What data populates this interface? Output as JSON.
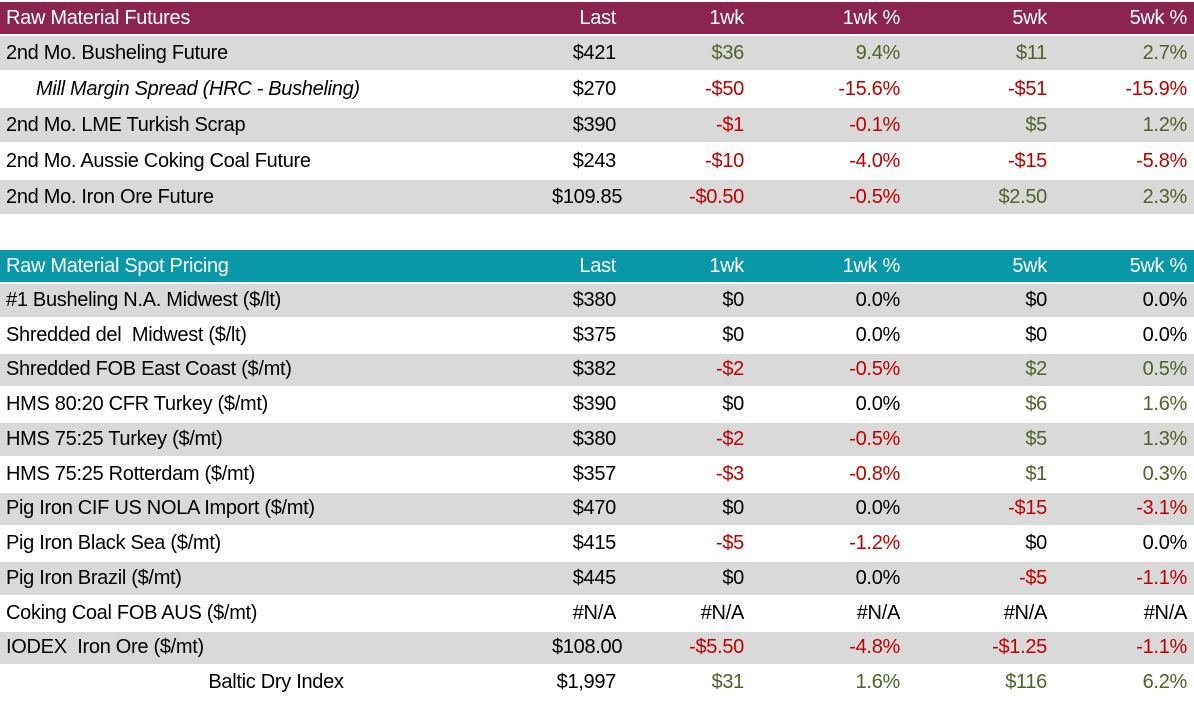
{
  "palette": {
    "futures_header_bg": "#8C2452",
    "spot_header_bg": "#0998A8",
    "header_text": "#FFFFFF",
    "stripe": "#D9D9D9",
    "positive": "#4F6228",
    "negative": "#C00000",
    "neutral": "#000000"
  },
  "chart_data": [
    {
      "type": "table",
      "title": "Raw Material Futures",
      "header_bg": "#8C2452",
      "columns": [
        "Last",
        "1wk",
        "1wk %",
        "5wk",
        "5wk %"
      ],
      "rows": [
        {
          "label": "2nd Mo. Busheling Future",
          "values": [
            "$421",
            "$36",
            "9.4%",
            "$11",
            "2.7%"
          ]
        },
        {
          "label": "Mill Margin Spread (HRC - Busheling)",
          "label_style": "italic-indented",
          "values": [
            "$270",
            "-$50",
            "-15.6%",
            "-$51",
            "-15.9%"
          ]
        },
        {
          "label": "2nd Mo. LME Turkish Scrap",
          "values": [
            "$390",
            "-$1",
            "-0.1%",
            "$5",
            "1.2%"
          ]
        },
        {
          "label": "2nd Mo. Aussie Coking Coal Future",
          "values": [
            "$243",
            "-$10",
            "-4.0%",
            "-$15",
            "-5.8%"
          ]
        },
        {
          "label": "2nd Mo. Iron Ore Future",
          "values": [
            "$109.85",
            "-$0.50",
            "-0.5%",
            "$2.50",
            "2.3%"
          ]
        }
      ]
    },
    {
      "type": "table",
      "title": "Raw Material Spot Pricing",
      "header_bg": "#0998A8",
      "columns": [
        "Last",
        "1wk",
        "1wk %",
        "5wk",
        "5wk %"
      ],
      "rows": [
        {
          "label": "#1 Busheling N.A. Midwest ($/lt)",
          "values": [
            "$380",
            "$0",
            "0.0%",
            "$0",
            "0.0%"
          ]
        },
        {
          "label": "Shredded del  Midwest ($/lt)",
          "values": [
            "$375",
            "$0",
            "0.0%",
            "$0",
            "0.0%"
          ]
        },
        {
          "label": "Shredded FOB East Coast ($/mt)",
          "values": [
            "$382",
            "-$2",
            "-0.5%",
            "$2",
            "0.5%"
          ]
        },
        {
          "label": "HMS 80:20 CFR Turkey ($/mt)",
          "values": [
            "$390",
            "$0",
            "0.0%",
            "$6",
            "1.6%"
          ]
        },
        {
          "label": "HMS 75:25 Turkey ($/mt)",
          "values": [
            "$380",
            "-$2",
            "-0.5%",
            "$5",
            "1.3%"
          ]
        },
        {
          "label": "HMS 75:25 Rotterdam ($/mt)",
          "values": [
            "$357",
            "-$3",
            "-0.8%",
            "$1",
            "0.3%"
          ]
        },
        {
          "label": "Pig Iron CIF US NOLA Import ($/mt)",
          "values": [
            "$470",
            "$0",
            "0.0%",
            "-$15",
            "-3.1%"
          ]
        },
        {
          "label": "Pig Iron Black Sea ($/mt)",
          "values": [
            "$415",
            "-$5",
            "-1.2%",
            "$0",
            "0.0%"
          ]
        },
        {
          "label": "Pig Iron Brazil ($/mt)",
          "values": [
            "$445",
            "$0",
            "0.0%",
            "-$5",
            "-1.1%"
          ]
        },
        {
          "label": "Coking Coal FOB AUS ($/mt)",
          "values": [
            "#N/A",
            "#N/A",
            "#N/A",
            "#N/A",
            "#N/A"
          ]
        },
        {
          "label": "IODEX  Iron Ore ($/mt)",
          "values": [
            "$108.00",
            "-$5.50",
            "-4.8%",
            "-$1.25",
            "-1.1%"
          ]
        },
        {
          "label": "Baltic Dry Index",
          "label_style": "centered",
          "values": [
            "$1,997",
            "$31",
            "1.6%",
            "$116",
            "6.2%"
          ]
        }
      ]
    }
  ]
}
